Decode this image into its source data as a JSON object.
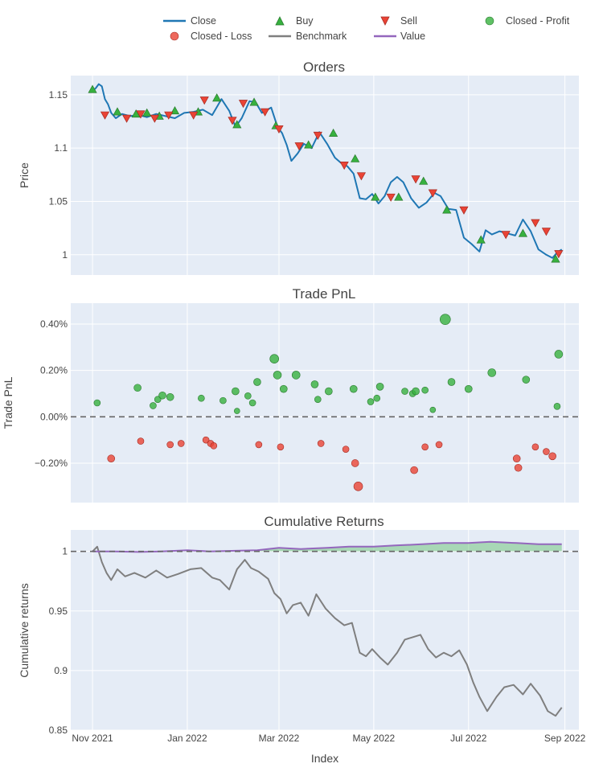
{
  "colors": {
    "plot_bg": "#e5ecf6",
    "grid": "#ffffff",
    "close": "#1f77b4",
    "buy": "#37b13f",
    "sell": "#ea4335",
    "profit": "#37b13f",
    "loss": "#ea4335",
    "benchmark": "#7f7f7f",
    "value": "#9467bd",
    "fill_positive": "rgba(55,177,63,0.35)",
    "zero_line": "#666666"
  },
  "legend": {
    "items": [
      {
        "label": "Close",
        "icon": "line"
      },
      {
        "label": "Buy",
        "icon": "triangle-up"
      },
      {
        "label": "Sell",
        "icon": "triangle-down"
      },
      {
        "label": "Closed - Profit",
        "icon": "circle-green"
      },
      {
        "label": "Closed - Loss",
        "icon": "circle-red"
      },
      {
        "label": "Benchmark",
        "icon": "line-gray"
      },
      {
        "label": "Value",
        "icon": "line-purple"
      }
    ]
  },
  "x_axis": {
    "title": "Index",
    "ticks": [
      "Nov 2021",
      "Jan 2022",
      "Mar 2022",
      "May 2022",
      "Jul 2022",
      "Sep 2022"
    ]
  },
  "chart_data": [
    {
      "type": "line",
      "title": "Orders",
      "ylabel": "Price",
      "ylim": [
        0.981,
        1.168
      ],
      "yticks": [
        "1.15",
        "1.1",
        "1.05",
        "1"
      ],
      "ytick_values": [
        1.15,
        1.1,
        1.05,
        1.0
      ],
      "series": [
        {
          "name": "Close",
          "x": [
            "2021-11-01",
            "2021-11-03",
            "2021-11-05",
            "2021-11-07",
            "2021-11-09",
            "2021-11-11",
            "2021-11-13",
            "2021-11-16",
            "2021-11-20",
            "2021-11-25",
            "2021-12-01",
            "2021-12-06",
            "2021-12-12",
            "2021-12-18",
            "2021-12-24",
            "2021-12-30",
            "2022-01-05",
            "2022-01-11",
            "2022-01-17",
            "2022-01-23",
            "2022-01-28",
            "2022-02-01",
            "2022-02-05",
            "2022-02-10",
            "2022-02-14",
            "2022-02-18",
            "2022-02-24",
            "2022-02-28",
            "2022-03-03",
            "2022-03-06",
            "2022-03-09",
            "2022-03-13",
            "2022-03-17",
            "2022-03-22",
            "2022-03-27",
            "2022-04-01",
            "2022-04-06",
            "2022-04-10",
            "2022-04-14",
            "2022-04-18",
            "2022-04-22",
            "2022-04-26",
            "2022-04-30",
            "2022-05-04",
            "2022-05-08",
            "2022-05-12",
            "2022-05-16",
            "2022-05-20",
            "2022-05-25",
            "2022-05-30",
            "2022-06-04",
            "2022-06-09",
            "2022-06-13",
            "2022-06-18",
            "2022-06-23",
            "2022-06-28",
            "2022-07-03",
            "2022-07-08",
            "2022-07-12",
            "2022-07-16",
            "2022-07-21",
            "2022-07-26",
            "2022-07-31",
            "2022-08-05",
            "2022-08-10",
            "2022-08-15",
            "2022-08-20",
            "2022-08-24",
            "2022-08-27",
            "2022-08-30"
          ],
          "y": [
            1.154,
            1.156,
            1.16,
            1.158,
            1.146,
            1.141,
            1.133,
            1.128,
            1.132,
            1.13,
            1.131,
            1.129,
            1.132,
            1.13,
            1.128,
            1.133,
            1.134,
            1.136,
            1.131,
            1.146,
            1.135,
            1.12,
            1.128,
            1.144,
            1.143,
            1.133,
            1.138,
            1.12,
            1.114,
            1.103,
            1.088,
            1.095,
            1.104,
            1.1,
            1.115,
            1.104,
            1.091,
            1.086,
            1.083,
            1.076,
            1.053,
            1.052,
            1.057,
            1.048,
            1.055,
            1.068,
            1.073,
            1.068,
            1.053,
            1.044,
            1.049,
            1.058,
            1.055,
            1.043,
            1.042,
            1.016,
            1.01,
            1.003,
            1.023,
            1.019,
            1.022,
            1.02,
            1.018,
            1.033,
            1.022,
            1.005,
            1.0,
            0.997,
            1.002,
            1.005
          ]
        }
      ],
      "buy": {
        "x": [
          "2021-11-01",
          "2021-11-17",
          "2021-11-29",
          "2021-12-06",
          "2021-12-14",
          "2021-12-24",
          "2022-01-08",
          "2022-01-20",
          "2022-02-02",
          "2022-02-13",
          "2022-02-27",
          "2022-03-20",
          "2022-04-05",
          "2022-04-19",
          "2022-05-02",
          "2022-05-17",
          "2022-06-02",
          "2022-06-17",
          "2022-07-09",
          "2022-08-05",
          "2022-08-26"
        ],
        "y": [
          1.155,
          1.134,
          1.132,
          1.133,
          1.13,
          1.135,
          1.134,
          1.147,
          1.122,
          1.143,
          1.121,
          1.103,
          1.114,
          1.09,
          1.054,
          1.054,
          1.069,
          1.042,
          1.014,
          1.02,
          0.996
        ]
      },
      "sell": {
        "x": [
          "2021-11-09",
          "2021-11-23",
          "2021-12-02",
          "2021-12-11",
          "2021-12-20",
          "2022-01-05",
          "2022-01-12",
          "2022-01-30",
          "2022-02-06",
          "2022-02-20",
          "2022-03-01",
          "2022-03-14",
          "2022-03-26",
          "2022-04-12",
          "2022-04-23",
          "2022-05-12",
          "2022-05-28",
          "2022-06-08",
          "2022-06-28",
          "2022-07-25",
          "2022-08-13",
          "2022-08-20",
          "2022-08-28"
        ],
        "y": [
          1.131,
          1.128,
          1.132,
          1.128,
          1.131,
          1.131,
          1.145,
          1.126,
          1.142,
          1.134,
          1.118,
          1.102,
          1.112,
          1.084,
          1.074,
          1.054,
          1.071,
          1.058,
          1.042,
          1.019,
          1.03,
          1.022,
          1.001
        ]
      }
    },
    {
      "type": "scatter",
      "title": "Trade PnL",
      "ylabel": "Trade PnL",
      "ylim": [
        -0.0037,
        0.0049
      ],
      "yticks": [
        "0.40%",
        "0.20%",
        "0.00%",
        "−0.20%"
      ],
      "ytick_values": [
        0.004,
        0.002,
        0.0,
        -0.002
      ],
      "profit": {
        "x": [
          "2021-11-04",
          "2021-11-30",
          "2021-12-10",
          "2021-12-13",
          "2021-12-16",
          "2021-12-21",
          "2022-01-10",
          "2022-01-24",
          "2022-02-01",
          "2022-02-02",
          "2022-02-09",
          "2022-02-12",
          "2022-02-15",
          "2022-02-26",
          "2022-02-28",
          "2022-03-04",
          "2022-03-12",
          "2022-03-24",
          "2022-03-26",
          "2022-04-02",
          "2022-04-18",
          "2022-04-29",
          "2022-05-03",
          "2022-05-05",
          "2022-05-21",
          "2022-05-26",
          "2022-05-28",
          "2022-06-03",
          "2022-06-08",
          "2022-06-16",
          "2022-06-20",
          "2022-07-01",
          "2022-07-16",
          "2022-08-07",
          "2022-08-27",
          "2022-08-28"
        ],
        "y": [
          0.0006,
          0.00125,
          0.00048,
          0.00075,
          0.00092,
          0.00085,
          0.0008,
          0.0007,
          0.0011,
          0.00025,
          0.0009,
          0.0006,
          0.0015,
          0.0025,
          0.0018,
          0.0012,
          0.0018,
          0.0014,
          0.00075,
          0.0011,
          0.0012,
          0.00065,
          0.0008,
          0.0013,
          0.0011,
          0.001,
          0.0011,
          0.00115,
          0.0003,
          0.0042,
          0.0015,
          0.0012,
          0.0019,
          0.0016,
          0.00045,
          0.0027
        ],
        "sizes": [
          8,
          9,
          8,
          8,
          9,
          9,
          8,
          8,
          9,
          7,
          8,
          8,
          9,
          11,
          10,
          9,
          10,
          9,
          8,
          9,
          9,
          8,
          8,
          9,
          8,
          8,
          9,
          8,
          7,
          13,
          9,
          9,
          10,
          9,
          8,
          10
        ]
      },
      "loss": {
        "x": [
          "2021-11-13",
          "2021-12-02",
          "2021-12-21",
          "2021-12-28",
          "2022-01-13",
          "2022-01-16",
          "2022-01-18",
          "2022-02-16",
          "2022-03-02",
          "2022-03-28",
          "2022-04-13",
          "2022-04-19",
          "2022-04-21",
          "2022-05-27",
          "2022-06-03",
          "2022-06-12",
          "2022-08-01",
          "2022-08-02",
          "2022-08-13",
          "2022-08-20",
          "2022-08-24"
        ],
        "y": [
          -0.0018,
          -0.00105,
          -0.0012,
          -0.00115,
          -0.001,
          -0.00115,
          -0.00125,
          -0.0012,
          -0.0013,
          -0.00115,
          -0.0014,
          -0.002,
          -0.003,
          -0.0023,
          -0.0013,
          -0.0012,
          -0.0018,
          -0.0022,
          -0.0013,
          -0.0015,
          -0.0017
        ],
        "sizes": [
          9,
          8,
          8,
          8,
          8,
          8,
          8,
          8,
          8,
          8,
          8,
          9,
          11,
          9,
          8,
          8,
          9,
          9,
          8,
          8,
          9
        ]
      }
    },
    {
      "type": "area",
      "title": "Cumulative Returns",
      "ylabel": "Cumulative returns",
      "ylim": [
        0.85,
        1.018
      ],
      "yticks": [
        "1",
        "0.95",
        "0.9",
        "0.85"
      ],
      "ytick_values": [
        1.0,
        0.95,
        0.9,
        0.85
      ],
      "series": [
        {
          "name": "Benchmark",
          "x": [
            "2021-11-01",
            "2021-11-04",
            "2021-11-07",
            "2021-11-10",
            "2021-11-13",
            "2021-11-17",
            "2021-11-22",
            "2021-11-28",
            "2021-12-05",
            "2021-12-12",
            "2021-12-19",
            "2021-12-26",
            "2022-01-03",
            "2022-01-10",
            "2022-01-17",
            "2022-01-22",
            "2022-01-28",
            "2022-02-02",
            "2022-02-07",
            "2022-02-11",
            "2022-02-16",
            "2022-02-22",
            "2022-02-26",
            "2022-03-02",
            "2022-03-06",
            "2022-03-10",
            "2022-03-15",
            "2022-03-20",
            "2022-03-25",
            "2022-03-31",
            "2022-04-06",
            "2022-04-12",
            "2022-04-17",
            "2022-04-22",
            "2022-04-26",
            "2022-04-30",
            "2022-05-05",
            "2022-05-10",
            "2022-05-16",
            "2022-05-21",
            "2022-05-26",
            "2022-05-31",
            "2022-06-05",
            "2022-06-10",
            "2022-06-15",
            "2022-06-20",
            "2022-06-25",
            "2022-06-30",
            "2022-07-04",
            "2022-07-08",
            "2022-07-13",
            "2022-07-19",
            "2022-07-24",
            "2022-07-30",
            "2022-08-05",
            "2022-08-10",
            "2022-08-16",
            "2022-08-21",
            "2022-08-26",
            "2022-08-30"
          ],
          "y": [
            1.0,
            1.004,
            0.991,
            0.982,
            0.976,
            0.985,
            0.979,
            0.982,
            0.978,
            0.984,
            0.978,
            0.981,
            0.985,
            0.986,
            0.978,
            0.976,
            0.968,
            0.985,
            0.993,
            0.986,
            0.983,
            0.977,
            0.965,
            0.96,
            0.948,
            0.955,
            0.957,
            0.946,
            0.964,
            0.952,
            0.944,
            0.938,
            0.94,
            0.915,
            0.912,
            0.918,
            0.911,
            0.905,
            0.915,
            0.926,
            0.928,
            0.93,
            0.918,
            0.911,
            0.915,
            0.912,
            0.917,
            0.905,
            0.89,
            0.878,
            0.866,
            0.878,
            0.886,
            0.888,
            0.88,
            0.889,
            0.879,
            0.866,
            0.862,
            0.869
          ]
        },
        {
          "name": "Value",
          "x": [
            "2021-11-01",
            "2021-11-15",
            "2021-12-01",
            "2021-12-15",
            "2022-01-01",
            "2022-01-15",
            "2022-02-01",
            "2022-02-15",
            "2022-03-01",
            "2022-03-15",
            "2022-04-01",
            "2022-04-15",
            "2022-05-01",
            "2022-05-15",
            "2022-06-01",
            "2022-06-15",
            "2022-07-01",
            "2022-07-15",
            "2022-08-01",
            "2022-08-15",
            "2022-08-30"
          ],
          "y": [
            1.0,
            1.0,
            0.9995,
            1.0,
            1.001,
            1.0,
            1.0005,
            1.001,
            1.003,
            1.002,
            1.003,
            1.004,
            1.004,
            1.005,
            1.006,
            1.007,
            1.007,
            1.008,
            1.007,
            1.006,
            1.006
          ]
        }
      ]
    }
  ]
}
